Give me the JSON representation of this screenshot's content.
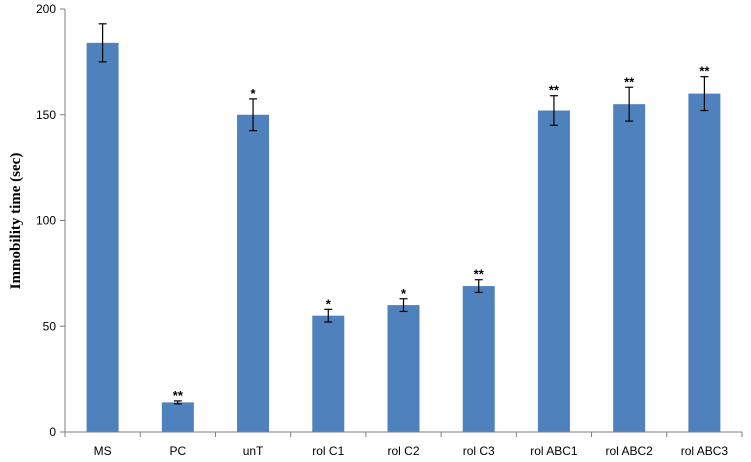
{
  "chart_data": {
    "type": "bar",
    "title": "",
    "xlabel": "",
    "ylabel": "Immobility time (sec)",
    "ylim": [
      0,
      200
    ],
    "yticks": [
      0,
      50,
      100,
      150,
      200
    ],
    "grid": false,
    "legend": "none",
    "bar_color": "#4f81bd",
    "categories": [
      "MS",
      "PC",
      "unT",
      "rol C1",
      "rol C2",
      "rol C3",
      "rol ABC1",
      "rol ABC2",
      "rol ABC3"
    ],
    "values": [
      184,
      14,
      150,
      55,
      60,
      69,
      152,
      155,
      160
    ],
    "errors": [
      9,
      0.7,
      7.5,
      3,
      3,
      3,
      7,
      8,
      8
    ],
    "significance": [
      "",
      "**",
      "*",
      "*",
      "*",
      "**",
      "**",
      "**",
      "**"
    ]
  }
}
